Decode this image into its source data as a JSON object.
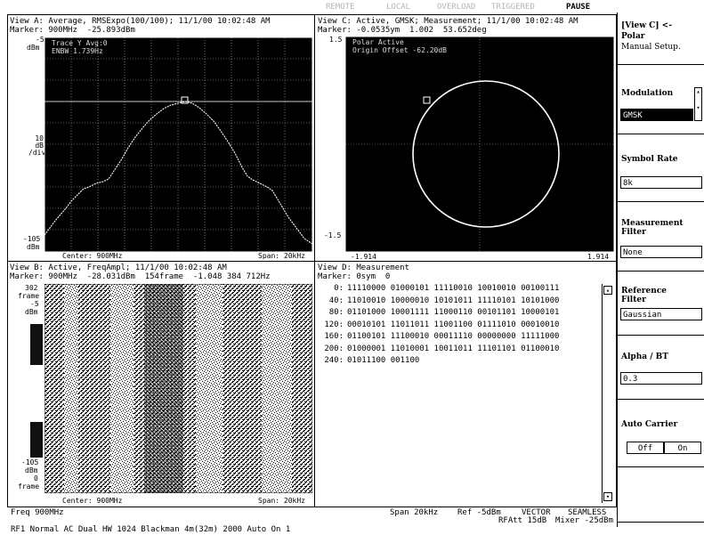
{
  "status_bar": {
    "remote": "REMOTE",
    "local": "LOCAL",
    "overload": "OVERLOAD",
    "triggered": "TRIGGERED",
    "pause": "PAUSE"
  },
  "view_a": {
    "title": "View A: Average, RMSExpo(100/100); 11/1/00 10:02:48 AM",
    "marker": "Marker: 900MHz  -25.893dBm",
    "y_top": "-5",
    "y_top_unit": "dBm",
    "y_scale": "10\ndB\n/div",
    "y_bottom": "-105",
    "y_bottom_unit": "dBm",
    "center": "Center: 900MHz",
    "span": "Span: 20kHz",
    "overlay_line1": "Trace Y   Avg:0",
    "overlay_line2": "ENBW  1.739Hz"
  },
  "view_c": {
    "title": "View C: Active, GMSK; Measurement; 11/1/00 10:02:48 AM",
    "marker": "Marker: -0.0535ym  1.002  53.652deg",
    "y_top": "1.5",
    "y_bottom": "-1.5",
    "x_left": "-1.914",
    "x_right": "1.914",
    "overlay_line1": "Polar  Active",
    "overlay_line2": "Origin Offset  -62.20dB"
  },
  "view_b": {
    "title": "View B: Active, FreqAmpl; 11/1/00 10:02:48 AM",
    "marker": "Marker: 900MHz  -28.031dBm  154frame  -1.048 384 712Hz",
    "y_top": "302",
    "y_top_unit": "frame",
    "y_a": "-5",
    "y_a_unit": "dBm",
    "y_b": "-105",
    "y_b_unit": "dBm",
    "y_bottom": "0",
    "y_bottom_unit": "frame",
    "center": "Center: 900MHz",
    "span": "Span: 20kHz"
  },
  "view_d": {
    "title": "View D: Measurement",
    "marker": "Marker: 0sym  0",
    "rows": [
      {
        "index": "0:",
        "bits": "11110000 01000101 11110010 10010010 00100111"
      },
      {
        "index": "40:",
        "bits": "11010010 10000010 10101011 11110101 10101000"
      },
      {
        "index": "80:",
        "bits": "01101000 10001111 11000110 00101101 10000101"
      },
      {
        "index": "120:",
        "bits": "00010101 11011011 11001100 01111010 00010010"
      },
      {
        "index": "160:",
        "bits": "01100101 11100010 00011110 00000000 11111000"
      },
      {
        "index": "200:",
        "bits": "01000001 11010001 10011011 11101101 01100010"
      },
      {
        "index": "240:",
        "bits": "01011100 001100"
      }
    ]
  },
  "footer": {
    "freq": "Freq 900MHz",
    "span": "Span 20kHz",
    "ref": "Ref -5dBm",
    "vector": "VECTOR",
    "seamless": "SEAMLESS",
    "rfatt": "RFAtt 15dB",
    "mixer": "Mixer -25dBm",
    "status_line": "RF1 Normal AC Dual HW 1024 Blackman 4m(32m) 2000 Auto On 1"
  },
  "sidebar": {
    "header": "[View C] <-",
    "mode": "Polar",
    "manual_setup": "Manual Setup.",
    "modulation_label": "Modulation",
    "modulation_value": "GMSK",
    "symbol_rate_label": "Symbol Rate",
    "symbol_rate_value": "8k",
    "measurement_filter_label": "Measurement\nFilter",
    "measurement_filter_value": "None",
    "reference_filter_label": "Reference\nFilter",
    "reference_filter_value": "Gaussian",
    "alpha_bt_label": "Alpha / BT",
    "alpha_bt_value": "0.3",
    "auto_carrier_label": "Auto Carrier",
    "auto_carrier_off": "Off",
    "auto_carrier_on": "On"
  }
}
